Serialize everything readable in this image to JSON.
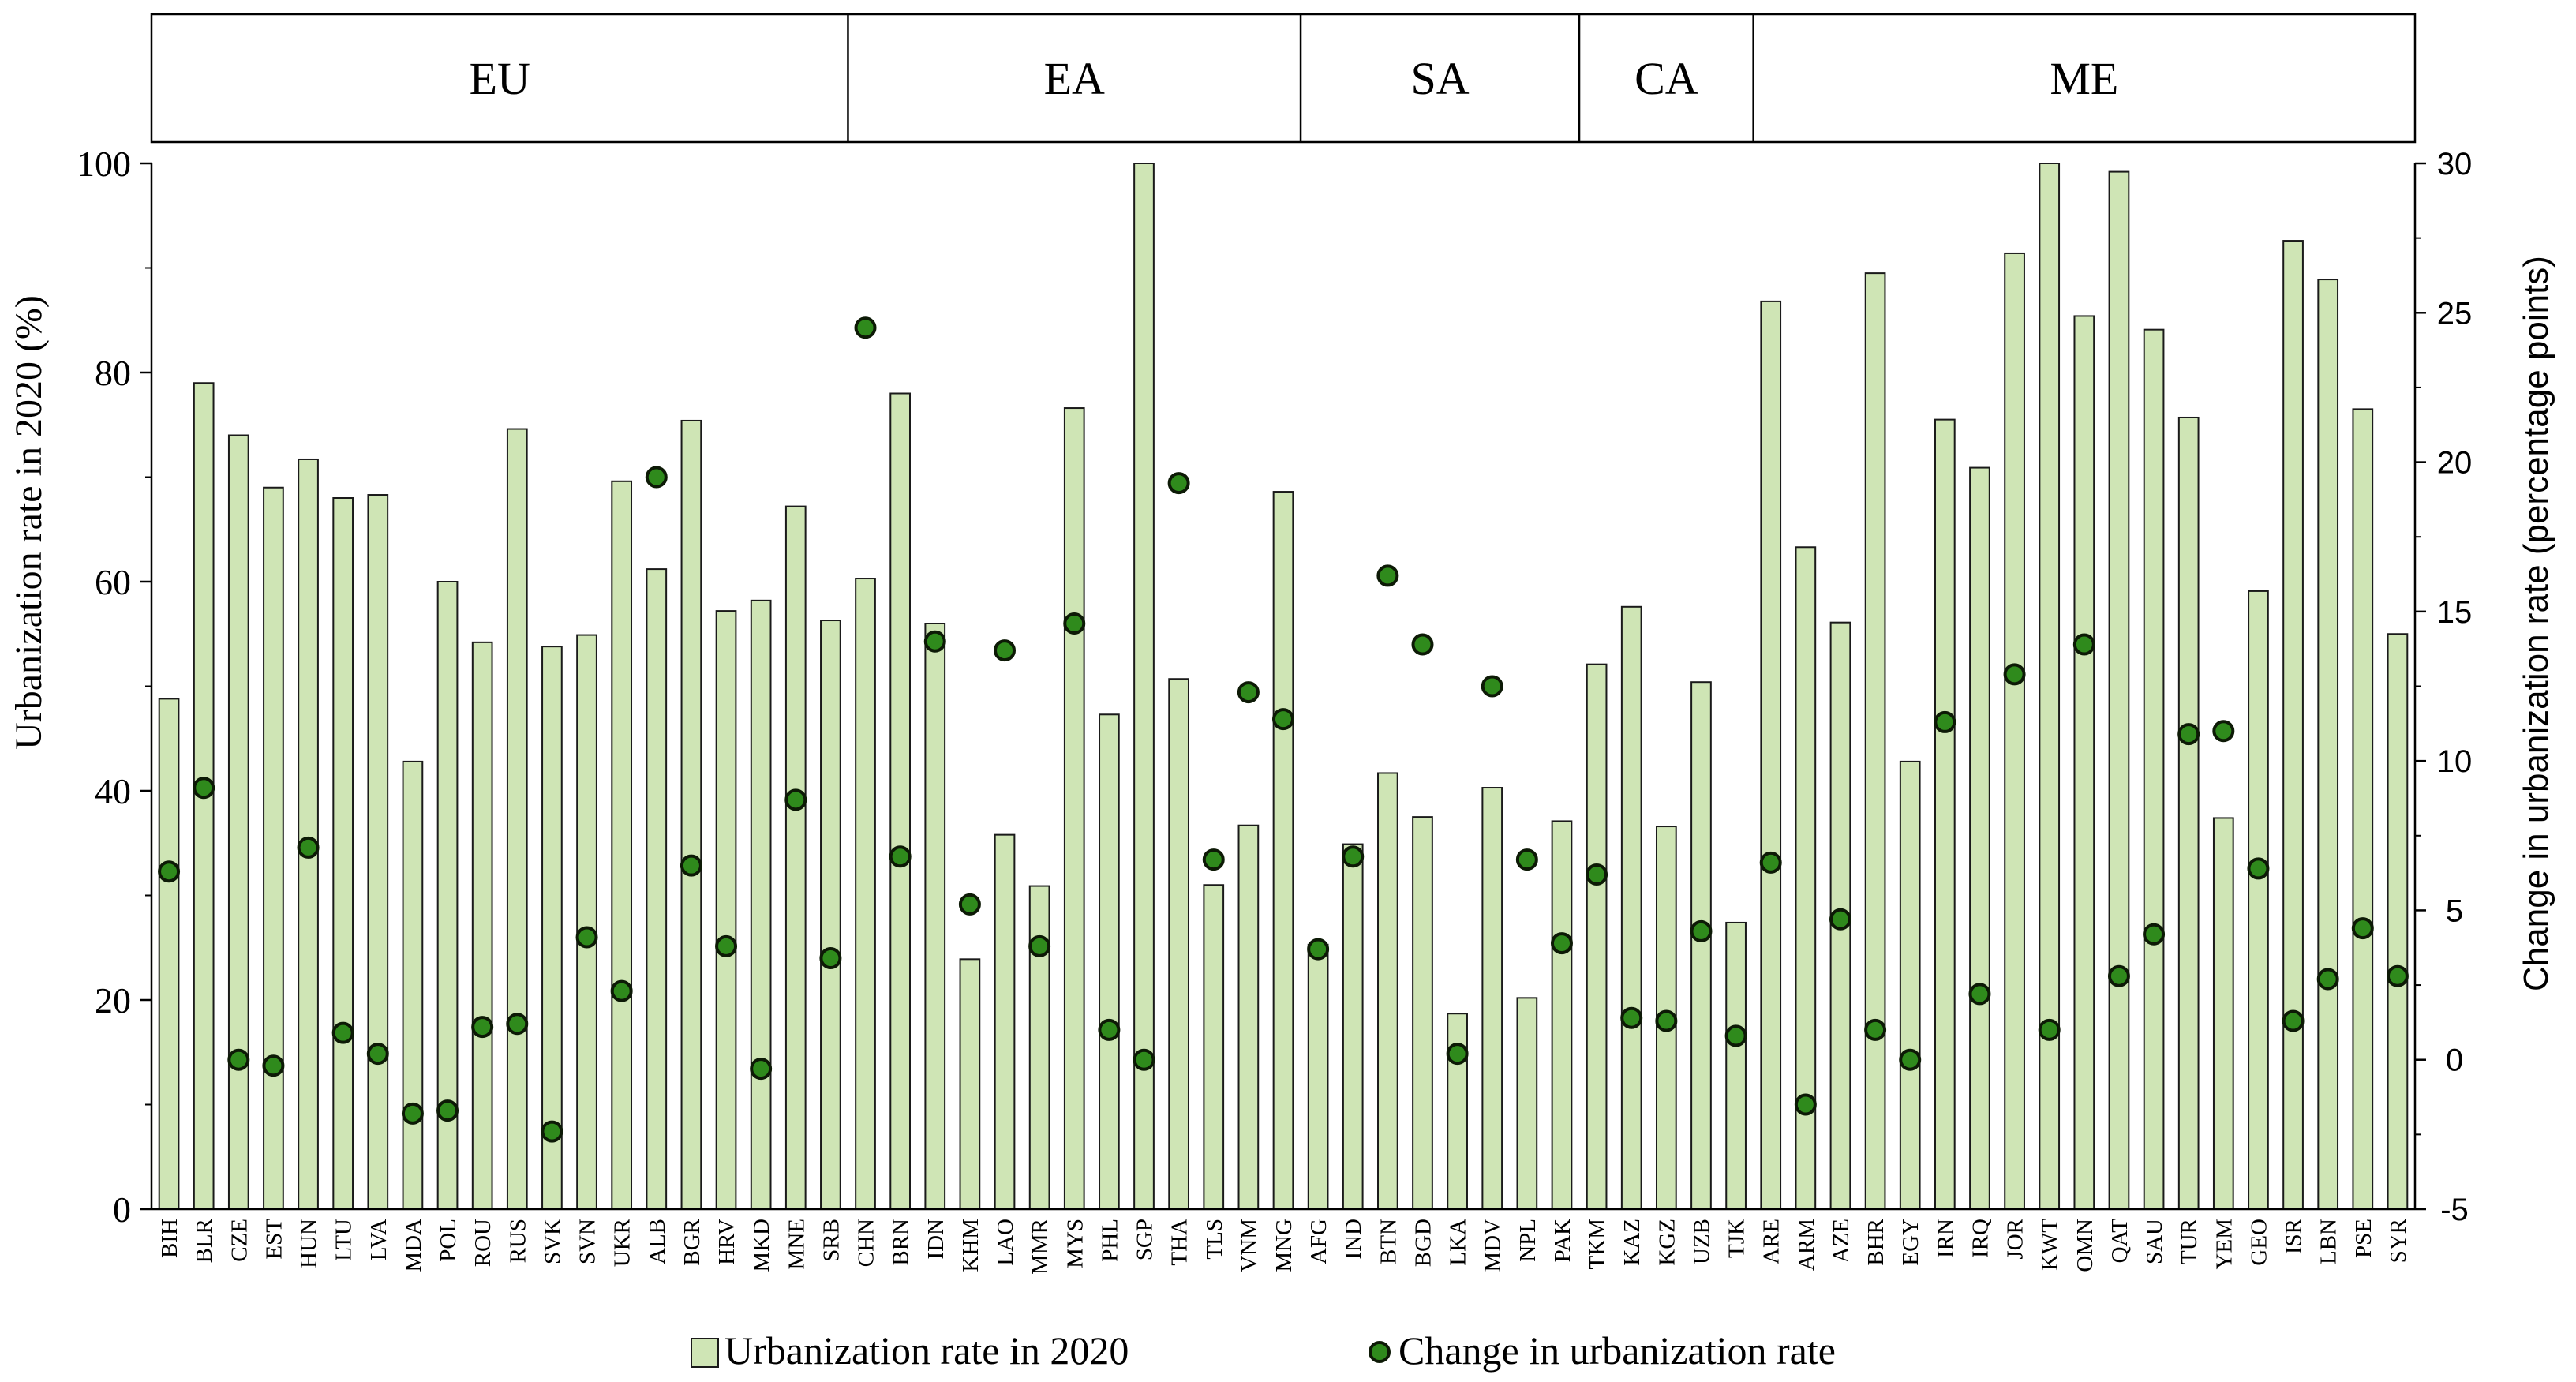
{
  "chart_data": {
    "type": "bar",
    "regions": [
      {
        "label": "EU",
        "count": 20
      },
      {
        "label": "EA",
        "count": 13
      },
      {
        "label": "SA",
        "count": 8
      },
      {
        "label": "CA",
        "count": 5
      },
      {
        "label": "ME",
        "count": 19
      }
    ],
    "categories": [
      "BIH",
      "BLR",
      "CZE",
      "EST",
      "HUN",
      "LTU",
      "LVA",
      "MDA",
      "POL",
      "ROU",
      "RUS",
      "SVK",
      "SVN",
      "UKR",
      "ALB",
      "BGR",
      "HRV",
      "MKD",
      "MNE",
      "SRB",
      "CHN",
      "BRN",
      "IDN",
      "KHM",
      "LAO",
      "MMR",
      "MYS",
      "PHL",
      "SGP",
      "THA",
      "TLS",
      "VNM",
      "MNG",
      "AFG",
      "IND",
      "BTN",
      "BGD",
      "LKA",
      "MDV",
      "NPL",
      "PAK",
      "TKM",
      "KAZ",
      "KGZ",
      "UZB",
      "TJK",
      "ARE",
      "ARM",
      "AZE",
      "BHR",
      "EGY",
      "IRN",
      "IRQ",
      "JOR",
      "KWT",
      "OMN",
      "QAT",
      "SAU",
      "TUR",
      "YEM",
      "GEO",
      "ISR",
      "LBN",
      "PSE",
      "SYR"
    ],
    "series": [
      {
        "name": "Urbanization rate in 2020",
        "axis": "left",
        "kind": "bar",
        "values": [
          48.8,
          79.0,
          74.0,
          69.0,
          71.7,
          68.0,
          68.3,
          42.8,
          60.0,
          54.2,
          74.6,
          53.8,
          54.9,
          69.6,
          61.2,
          75.4,
          57.2,
          58.2,
          67.2,
          56.3,
          60.3,
          78.0,
          56.0,
          23.9,
          35.8,
          30.9,
          76.6,
          47.3,
          100,
          50.7,
          31.0,
          36.7,
          68.6,
          25.3,
          34.9,
          41.7,
          37.5,
          18.7,
          40.3,
          20.2,
          37.1,
          52.1,
          57.6,
          36.6,
          50.4,
          27.4,
          86.8,
          63.3,
          56.1,
          89.5,
          42.8,
          75.5,
          70.9,
          91.4,
          100,
          85.4,
          99.2,
          84.1,
          75.7,
          37.4,
          59.1,
          92.6,
          88.9,
          76.5,
          55.0
        ]
      },
      {
        "name": "Change in urbanization rate",
        "axis": "right",
        "kind": "scatter",
        "values": [
          6.3,
          9.1,
          0.0,
          -0.2,
          7.1,
          0.9,
          0.2,
          -1.8,
          -1.7,
          1.1,
          1.2,
          -2.4,
          4.1,
          2.3,
          19.5,
          6.5,
          3.8,
          -0.3,
          8.7,
          3.4,
          24.5,
          6.8,
          14.0,
          5.2,
          13.7,
          3.8,
          14.6,
          1.0,
          0.0,
          19.3,
          6.7,
          12.3,
          11.4,
          3.7,
          6.8,
          16.2,
          13.9,
          0.2,
          12.5,
          6.7,
          3.9,
          6.2,
          1.4,
          1.3,
          4.3,
          0.8,
          6.6,
          -1.5,
          4.7,
          1.0,
          0.0,
          11.3,
          2.2,
          12.9,
          1.0,
          13.9,
          2.8,
          4.2,
          10.9,
          11.0,
          6.4,
          1.3,
          2.7,
          4.4,
          2.8
        ]
      }
    ],
    "ylabel": "Urbanization rate in 2020 (%)",
    "ylabel_right": "Change in urbanization rate (percentage points)",
    "ylim": [
      0,
      100
    ],
    "ylim_right": [
      -5,
      30
    ],
    "yticks": [
      0,
      20,
      40,
      60,
      80,
      100
    ],
    "yticks_right": [
      -5,
      0,
      5,
      10,
      15,
      20,
      25,
      30
    ],
    "grid": false,
    "legend_position": "bottom",
    "colors": {
      "bar_fill": "#cfe5b5",
      "bar_stroke": "#1a1a1a",
      "dot_fill": "#2f8a1c",
      "dot_stroke": "#0d1a06",
      "axis": "#000000"
    }
  }
}
